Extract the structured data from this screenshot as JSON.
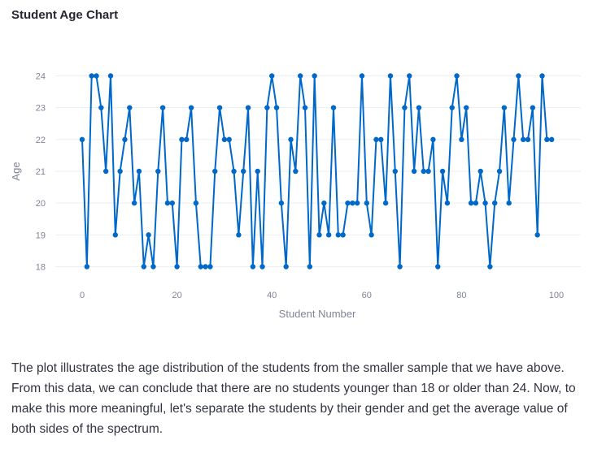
{
  "chart_data": {
    "type": "line",
    "title": "Student Age Chart",
    "xlabel": "Student Number",
    "ylabel": "Age",
    "xlim": [
      0,
      100
    ],
    "ylim": [
      18,
      24
    ],
    "x_ticks": [
      0,
      20,
      40,
      60,
      80,
      100
    ],
    "y_ticks": [
      18,
      19,
      20,
      21,
      22,
      23,
      24
    ],
    "grid": true,
    "legend": "none",
    "markers": true,
    "line_color": "#0068c9",
    "x": [
      0,
      1,
      2,
      3,
      4,
      5,
      6,
      7,
      8,
      9,
      10,
      11,
      12,
      13,
      14,
      15,
      16,
      17,
      18,
      19,
      20,
      21,
      22,
      23,
      24,
      25,
      26,
      27,
      28,
      29,
      30,
      31,
      32,
      33,
      34,
      35,
      36,
      37,
      38,
      39,
      40,
      41,
      42,
      43,
      44,
      45,
      46,
      47,
      48,
      49,
      50,
      51,
      52,
      53,
      54,
      55,
      56,
      57,
      58,
      59,
      60,
      61,
      62,
      63,
      64,
      65,
      66,
      67,
      68,
      69,
      70,
      71,
      72,
      73,
      74,
      75,
      76,
      77,
      78,
      79,
      80,
      81,
      82,
      83,
      84,
      85,
      86,
      87,
      88,
      89,
      90,
      91,
      92,
      93,
      94,
      95,
      96,
      97,
      98,
      99
    ],
    "values": [
      22,
      18,
      24,
      24,
      23,
      21,
      24,
      19,
      21,
      22,
      23,
      20,
      21,
      18,
      19,
      18,
      21,
      23,
      20,
      20,
      18,
      22,
      22,
      23,
      20,
      18,
      18,
      18,
      21,
      23,
      22,
      22,
      21,
      19,
      21,
      23,
      18,
      21,
      18,
      23,
      24,
      23,
      20,
      18,
      22,
      21,
      24,
      23,
      18,
      24,
      19,
      20,
      19,
      23,
      19,
      19,
      20,
      20,
      20,
      24,
      20,
      19,
      22,
      22,
      20,
      24,
      21,
      18,
      23,
      24,
      21,
      23,
      21,
      21,
      22,
      18,
      21,
      20,
      23,
      24,
      22,
      23,
      20,
      20,
      21,
      20,
      18,
      20,
      21,
      23,
      20,
      22,
      24,
      22,
      22,
      23,
      19,
      24,
      22,
      22
    ]
  },
  "caption": "The plot illustrates the age distribution of the students from the smaller sample that we have above. From this data, we can conclude that there are no students younger than 18 or older than 24. Now, to make this more meaningful, let's separate the students by their gender and get the average value of both sides of the spectrum."
}
